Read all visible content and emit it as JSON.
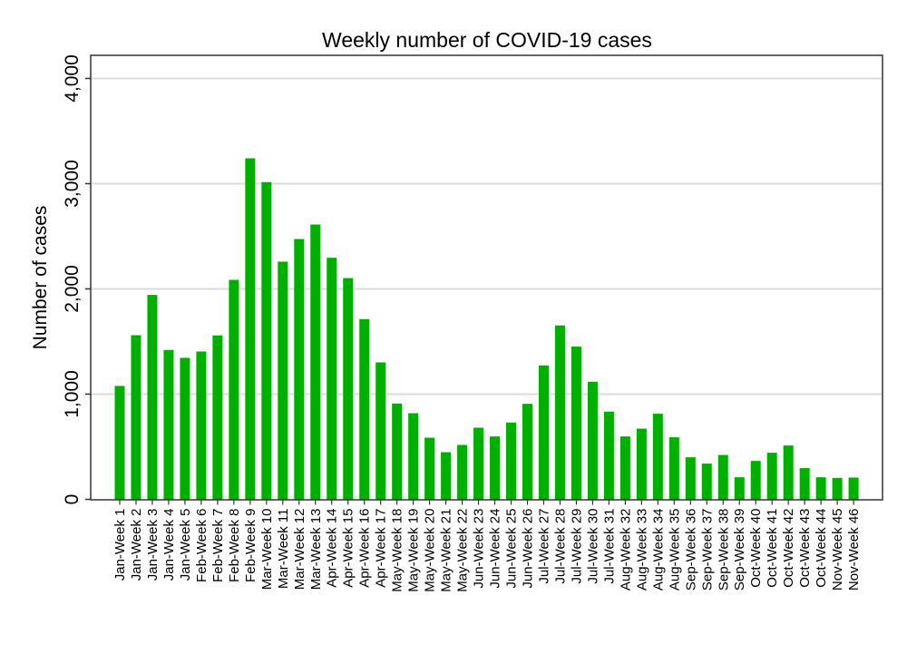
{
  "chart_data": {
    "type": "bar",
    "title": "Weekly number of COVID-19 cases",
    "xlabel": "",
    "ylabel": "Number of cases",
    "ylim": [
      0,
      4200
    ],
    "yticks": [
      0,
      1000,
      2000,
      3000,
      4000
    ],
    "ytick_labels": [
      "0",
      "1,000",
      "2,000",
      "3,000",
      "4,000"
    ],
    "grid": true,
    "bar_color": "#00b000",
    "categories": [
      "Jan-Week 1",
      "Jan-Week 2",
      "Jan-Week 3",
      "Jan-Week 4",
      "Jan-Week 5",
      "Feb-Week 6",
      "Feb-Week 7",
      "Feb-Week 8",
      "Feb-Week 9",
      "Mar-Week 10",
      "Mar-Week 11",
      "Mar-Week 12",
      "Mar-Week 13",
      "Apr-Week 14",
      "Apr-Week 15",
      "Apr-Week 16",
      "Apr-Week 17",
      "May-Week 18",
      "May-Week 19",
      "May-Week 20",
      "May-Week 21",
      "May-Week 22",
      "Jun-Week 23",
      "Jun-Week 24",
      "Jun-Week 25",
      "Jun-Week 26",
      "Jul-Week 27",
      "Jul-Week 28",
      "Jul-Week 29",
      "Jul-Week 30",
      "Jul-Week 31",
      "Aug-Week 32",
      "Aug-Week 33",
      "Aug-Week 34",
      "Aug-Week 35",
      "Sep-Week 36",
      "Sep-Week 37",
      "Sep-Week 38",
      "Sep-Week 39",
      "Oct-Week 40",
      "Oct-Week 41",
      "Oct-Week 42",
      "Oct-Week 43",
      "Oct-Week 44",
      "Nov-Week 45",
      "Nov-Week 46"
    ],
    "values": [
      1078,
      1560,
      1943,
      1420,
      1345,
      1405,
      1558,
      2086,
      3241,
      3015,
      2259,
      2474,
      2612,
      2296,
      2103,
      1713,
      1302,
      911,
      819,
      586,
      448,
      517,
      681,
      598,
      730,
      908,
      1273,
      1653,
      1452,
      1118,
      834,
      598,
      672,
      814,
      590,
      400,
      340,
      422,
      210,
      365,
      443,
      512,
      297,
      210,
      204,
      207
    ]
  }
}
